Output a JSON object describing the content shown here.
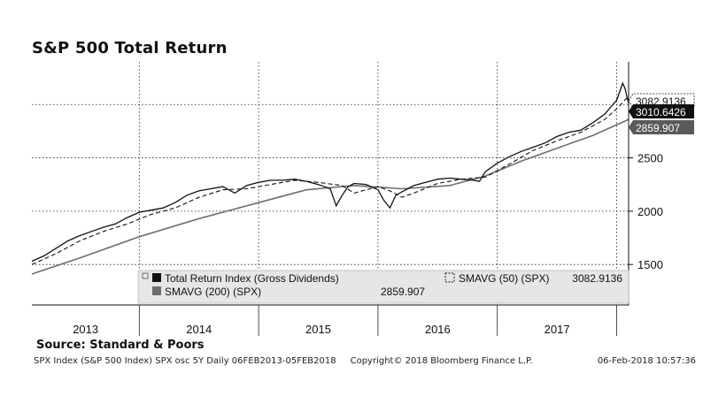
{
  "chart_data": {
    "type": "line",
    "title": "S&P 500 Total Return",
    "x_range": [
      2013.1,
      2018.1
    ],
    "ylim": [
      1120,
      3400
    ],
    "y_ticks": [
      1500,
      2000,
      2500
    ],
    "x_labels": [
      {
        "label": "2013",
        "year": 2013
      },
      {
        "label": "2014",
        "year": 2014
      },
      {
        "label": "2015",
        "year": 2015
      },
      {
        "label": "2016",
        "year": 2016
      },
      {
        "label": "2017",
        "year": 2017
      }
    ],
    "grid": true,
    "series": [
      {
        "name": "Total Return Index (Gross Dividends)",
        "style": "solid-black",
        "last_value": "3010.6426",
        "x": [
          2013.1,
          2013.2,
          2013.3,
          2013.4,
          2013.5,
          2013.6,
          2013.7,
          2013.8,
          2013.9,
          2014.0,
          2014.1,
          2014.2,
          2014.3,
          2014.4,
          2014.5,
          2014.6,
          2014.7,
          2014.8,
          2014.9,
          2015.0,
          2015.1,
          2015.2,
          2015.3,
          2015.4,
          2015.5,
          2015.6,
          2015.65,
          2015.7,
          2015.75,
          2015.8,
          2015.9,
          2016.0,
          2016.05,
          2016.1,
          2016.15,
          2016.2,
          2016.3,
          2016.4,
          2016.5,
          2016.6,
          2016.7,
          2016.8,
          2016.85,
          2016.9,
          2017.0,
          2017.1,
          2017.2,
          2017.3,
          2017.4,
          2017.5,
          2017.6,
          2017.7,
          2017.8,
          2017.9,
          2018.0,
          2018.05,
          2018.07,
          2018.1
        ],
        "values": [
          1530,
          1580,
          1650,
          1720,
          1770,
          1810,
          1850,
          1880,
          1940,
          1990,
          2010,
          2030,
          2080,
          2150,
          2190,
          2210,
          2230,
          2170,
          2240,
          2270,
          2290,
          2290,
          2300,
          2280,
          2250,
          2210,
          2050,
          2150,
          2230,
          2260,
          2250,
          2200,
          2100,
          2030,
          2150,
          2180,
          2240,
          2270,
          2300,
          2310,
          2300,
          2290,
          2280,
          2370,
          2450,
          2510,
          2560,
          2600,
          2640,
          2700,
          2740,
          2760,
          2830,
          2910,
          3040,
          3200,
          3150,
          3010
        ]
      },
      {
        "name": "SMAVG (50) (SPX)",
        "style": "dashed-black",
        "last_value": "3082.9136",
        "x": [
          2013.1,
          2013.3,
          2013.5,
          2013.7,
          2013.9,
          2014.1,
          2014.3,
          2014.5,
          2014.7,
          2014.9,
          2015.1,
          2015.3,
          2015.5,
          2015.7,
          2015.8,
          2015.9,
          2016.0,
          2016.1,
          2016.2,
          2016.3,
          2016.5,
          2016.7,
          2016.9,
          2017.1,
          2017.3,
          2017.5,
          2017.7,
          2017.9,
          2018.0,
          2018.1
        ],
        "values": [
          1500,
          1600,
          1720,
          1810,
          1880,
          1970,
          2030,
          2130,
          2200,
          2210,
          2250,
          2290,
          2270,
          2240,
          2170,
          2200,
          2230,
          2190,
          2130,
          2170,
          2260,
          2300,
          2320,
          2440,
          2570,
          2660,
          2740,
          2860,
          2960,
          3080
        ]
      },
      {
        "name": "SMAVG (200) (SPX)",
        "style": "solid-gray",
        "last_value": "2859.907",
        "x": [
          2013.1,
          2013.5,
          2014.0,
          2014.5,
          2015.0,
          2015.4,
          2015.8,
          2016.2,
          2016.6,
          2016.9,
          2017.2,
          2017.5,
          2017.8,
          2018.1
        ],
        "values": [
          1410,
          1560,
          1760,
          1930,
          2080,
          2200,
          2240,
          2210,
          2240,
          2330,
          2470,
          2590,
          2710,
          2860
        ]
      }
    ],
    "value_labels": [
      {
        "text": "3082.9136",
        "value": 3082.9136,
        "style": "dashed"
      },
      {
        "text": "3010.6426",
        "value": 3010.6426,
        "style": "black"
      },
      {
        "text": "2859.907",
        "value": 2859.907,
        "style": "gray"
      }
    ],
    "legend": {
      "placement": "bottom-left",
      "row1_left": "Total Return Index (Gross Dividends)",
      "row1_right_name": "SMAVG (50) (SPX)",
      "row1_right_value": "3082.9136",
      "row2_left": "SMAVG (200) (SPX)",
      "row2_value": "2859.907"
    }
  },
  "source": "Source: Standard & Poors",
  "footer": {
    "left": "SPX Index (S&P 500 Index) SPX osc 5Y  Daily 06FEB2013-05FEB2018",
    "middle": "Copyright© 2018 Bloomberg Finance L.P.",
    "right": "06-Feb-2018 10:57:36"
  },
  "colors": {
    "main_line": "#111111",
    "sma200": "#6e6e6e",
    "axis": "#111111",
    "legend_bg": "#e6e6e6",
    "gray_label": "#5a5a5a"
  }
}
